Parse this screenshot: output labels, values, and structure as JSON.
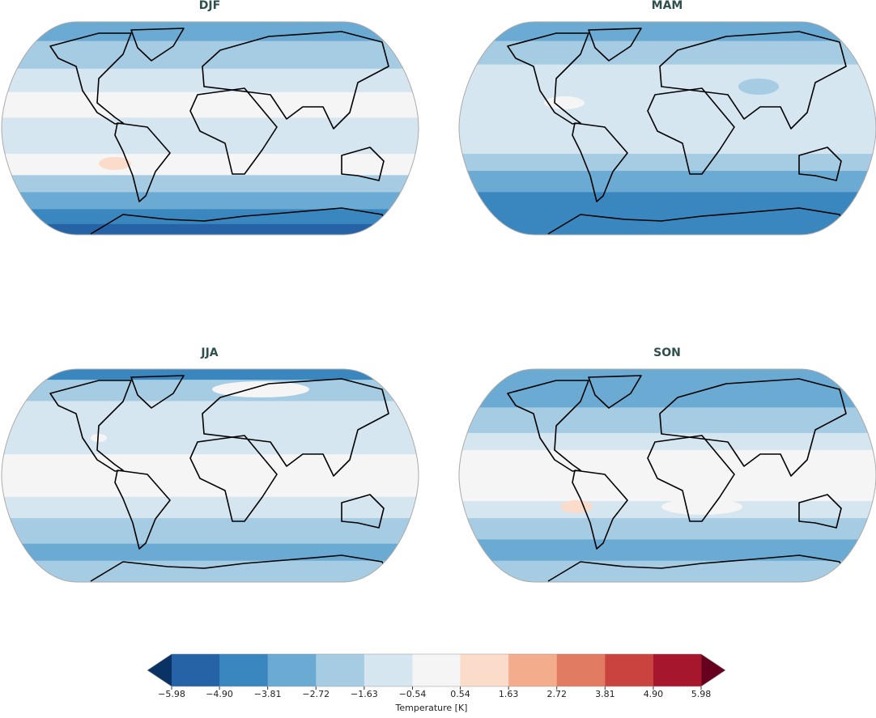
{
  "panels": [
    {
      "title": "DJF"
    },
    {
      "title": "MAM"
    },
    {
      "title": "JJA"
    },
    {
      "title": "SON"
    }
  ],
  "colorbar": {
    "label": "Temperature [K]",
    "ticks": [
      {
        "value": -5.98,
        "label": "−5.98"
      },
      {
        "value": -4.9,
        "label": "−4.90"
      },
      {
        "value": -3.81,
        "label": "−3.81"
      },
      {
        "value": -2.72,
        "label": "−2.72"
      },
      {
        "value": -1.63,
        "label": "−1.63"
      },
      {
        "value": -0.54,
        "label": "−0.54"
      },
      0.54,
      1.63,
      2.72,
      3.81,
      {
        "value": 4.9,
        "label": "4.90"
      },
      5.98
    ],
    "colors": [
      "#2563a6",
      "#3a86bf",
      "#6aaad3",
      "#a5cce3",
      "#d5e6f1",
      "#f5f5f5",
      "#fbdbc9",
      "#f4ad8c",
      "#e17c62",
      "#c9443f",
      "#a6172e"
    ],
    "under_color": "#0b3264",
    "over_color": "#67001f"
  }
}
